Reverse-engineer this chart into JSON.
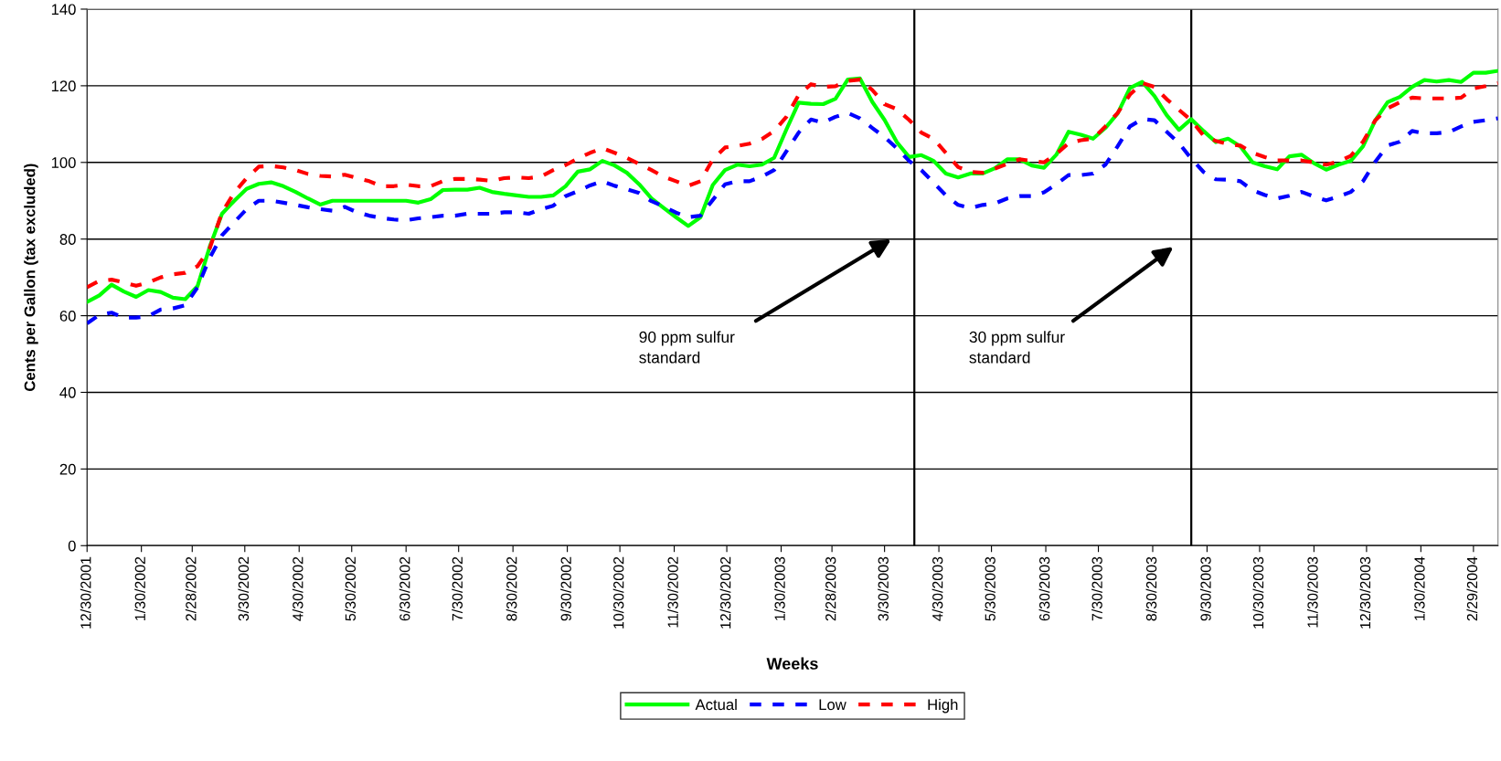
{
  "chart_data": {
    "type": "line",
    "xlabel": "Weeks",
    "ylabel": "Cents per Gallon (tax excluded)",
    "x": [
      "2001-12-30",
      "2002-01-06",
      "2002-01-13",
      "2002-01-20",
      "2002-01-27",
      "2002-02-03",
      "2002-02-10",
      "2002-02-17",
      "2002-02-24",
      "2002-03-03",
      "2002-03-10",
      "2002-03-17",
      "2002-03-24",
      "2002-03-31",
      "2002-04-07",
      "2002-04-14",
      "2002-04-21",
      "2002-04-28",
      "2002-05-05",
      "2002-05-12",
      "2002-05-19",
      "2002-05-26",
      "2002-06-02",
      "2002-06-09",
      "2002-06-16",
      "2002-06-23",
      "2002-06-30",
      "2002-07-07",
      "2002-07-14",
      "2002-07-21",
      "2002-07-28",
      "2002-08-04",
      "2002-08-11",
      "2002-08-18",
      "2002-08-25",
      "2002-09-01",
      "2002-09-08",
      "2002-09-15",
      "2002-09-22",
      "2002-09-29",
      "2002-10-06",
      "2002-10-13",
      "2002-10-20",
      "2002-10-27",
      "2002-11-03",
      "2002-11-10",
      "2002-11-17",
      "2002-11-24",
      "2002-12-01",
      "2002-12-08",
      "2002-12-15",
      "2002-12-22",
      "2002-12-29",
      "2003-01-05",
      "2003-01-12",
      "2003-01-19",
      "2003-01-26",
      "2003-02-02",
      "2003-02-09",
      "2003-02-16",
      "2003-02-23",
      "2003-03-02",
      "2003-03-09",
      "2003-03-16",
      "2003-03-23",
      "2003-03-30",
      "2003-04-06",
      "2003-04-13",
      "2003-04-20",
      "2003-04-27",
      "2003-05-04",
      "2003-05-11",
      "2003-05-18",
      "2003-05-25",
      "2003-06-01",
      "2003-06-08",
      "2003-06-15",
      "2003-06-22",
      "2003-06-29",
      "2003-07-06",
      "2003-07-13",
      "2003-07-20",
      "2003-07-27",
      "2003-08-03",
      "2003-08-10",
      "2003-08-17",
      "2003-08-24",
      "2003-08-31",
      "2003-09-07",
      "2003-09-14",
      "2003-09-21",
      "2003-09-28",
      "2003-10-05",
      "2003-10-12",
      "2003-10-19",
      "2003-10-26",
      "2003-11-02",
      "2003-11-09",
      "2003-11-16",
      "2003-11-23",
      "2003-11-30",
      "2003-12-07",
      "2003-12-14",
      "2003-12-21",
      "2003-12-28",
      "2004-01-04",
      "2004-01-11",
      "2004-01-18",
      "2004-01-25",
      "2004-02-01",
      "2004-02-08",
      "2004-02-15",
      "2004-02-22",
      "2004-02-29",
      "2004-03-07",
      "2004-03-14"
    ],
    "series": [
      {
        "name": "Actual",
        "color": "#00ff00",
        "line_style": "solid",
        "values": [
          63.6,
          65.3,
          68.1,
          66.3,
          64.9,
          66.7,
          66.2,
          64.7,
          64.3,
          67.7,
          78,
          86.6,
          90.0,
          93.1,
          94.4,
          94.8,
          93.8,
          92.3,
          90.6,
          89.0,
          90,
          90,
          90,
          90,
          90,
          90,
          90,
          89.5,
          90.4,
          92.8,
          92.9,
          92.9,
          93.4,
          92.3,
          91.8,
          91.4,
          91.0,
          91.0,
          91.4,
          93.8,
          97.6,
          98.2,
          100.4,
          99.2,
          97.3,
          94.3,
          90.6,
          88.1,
          85.7,
          83.4,
          85.7,
          94.1,
          98.0,
          99.4,
          99.0,
          99.4,
          101.2,
          108.6,
          115.6,
          115.3,
          115.2,
          116.6,
          121.6,
          121.9,
          115.8,
          111.1,
          105.3,
          101.4,
          101.9,
          100.4,
          97.1,
          96.1,
          97.1,
          97.1,
          98.5,
          100.8,
          100.8,
          99.2,
          98.6,
          102.0,
          108.0,
          107.2,
          106.2,
          109.0,
          112.8,
          119.4,
          121.0,
          117.3,
          112.3,
          108.5,
          111.3,
          108.2,
          105.3,
          106.2,
          104.2,
          100.0,
          99.0,
          98.2,
          101.6,
          102.0,
          99.8,
          98.1,
          99.4,
          100.4,
          104.2,
          111.0,
          115.7,
          117.1,
          119.7,
          121.5,
          121.1,
          121.5,
          121.0,
          123.4,
          123.4,
          123.9
        ]
      },
      {
        "name": "Low",
        "color": "#0000ff",
        "line_style": "dashed",
        "values": [
          58.0,
          60.2,
          60.8,
          59.5,
          59.5,
          59.9,
          61.6,
          61.9,
          62.7,
          67.4,
          75.1,
          81.0,
          84.4,
          87.8,
          90.0,
          90.0,
          89.5,
          88.9,
          88.3,
          87.8,
          87.4,
          88.4,
          87.0,
          86.1,
          85.5,
          85.1,
          84.9,
          85.4,
          85.7,
          86.1,
          86.1,
          86.6,
          86.6,
          86.6,
          87.0,
          87.0,
          86.6,
          87.8,
          88.7,
          91.2,
          92.5,
          94.0,
          95.1,
          93.9,
          93.0,
          92.0,
          89.9,
          88.5,
          86.9,
          85.7,
          86.1,
          90.2,
          94.3,
          95.1,
          95.1,
          96.3,
          98.0,
          102.9,
          107.8,
          111.2,
          110.4,
          111.9,
          112.9,
          111.5,
          109.0,
          106.6,
          103.7,
          100.4,
          98.0,
          94.7,
          91.4,
          88.9,
          88.1,
          88.9,
          89.3,
          90.6,
          91.2,
          91.2,
          92.2,
          94.3,
          96.7,
          96.7,
          97.1,
          99.4,
          104.2,
          109.4,
          111.3,
          111.0,
          108.0,
          105.0,
          101.0,
          97.5,
          95.6,
          95.5,
          95.1,
          92.7,
          91.5,
          90.6,
          91.3,
          92.3,
          91.1,
          90.1,
          91.1,
          92.3,
          95.1,
          100.2,
          104.4,
          105.4,
          108.2,
          107.6,
          107.6,
          107.9,
          109.4,
          110.6,
          111.0,
          111.5
        ]
      },
      {
        "name": "High",
        "color": "#ff0000",
        "line_style": "dashed",
        "values": [
          67.4,
          69.1,
          69.4,
          68.7,
          67.8,
          68.7,
          70.0,
          70.8,
          71.2,
          72.9,
          77.6,
          87.0,
          92.1,
          95.9,
          98.9,
          99.1,
          98.7,
          98.0,
          97.0,
          96.5,
          96.3,
          96.8,
          95.9,
          95.1,
          93.8,
          93.8,
          94.2,
          93.8,
          93.8,
          95.1,
          95.7,
          95.7,
          95.5,
          95.2,
          95.9,
          96.1,
          95.9,
          96.3,
          98.0,
          99.3,
          101.0,
          102.5,
          103.7,
          102.5,
          101.2,
          99.6,
          98.0,
          96.3,
          95.1,
          93.9,
          95.1,
          100.8,
          103.9,
          104.3,
          104.9,
          106.1,
          108.2,
          111.9,
          117.6,
          120.4,
          119.7,
          119.9,
          121.3,
          121.6,
          118.9,
          115.2,
          113.9,
          111.1,
          107.8,
          106.1,
          102.5,
          98.8,
          97.5,
          97.3,
          98.4,
          99.6,
          100.8,
          100.4,
          100.0,
          102.2,
          105.0,
          105.8,
          106.2,
          109.4,
          112.9,
          117.7,
          120.7,
          119.7,
          116.5,
          113.7,
          111.0,
          107.0,
          105.6,
          104.8,
          104.4,
          102.5,
          101.4,
          100.5,
          100.5,
          100.5,
          100.0,
          99.4,
          100.2,
          101.7,
          105.4,
          111.0,
          114.1,
          115.7,
          116.9,
          116.7,
          116.7,
          116.7,
          116.9,
          119.3,
          119.9,
          120.7
        ]
      }
    ],
    "xlim": [
      "2001-12-30",
      "2004-03-14"
    ],
    "xticks": [
      {
        "value": "2001-12-30",
        "label": "12/30/2001"
      },
      {
        "value": "2002-01-30",
        "label": "1/30/2002"
      },
      {
        "value": "2002-02-28",
        "label": "2/28/2002"
      },
      {
        "value": "2002-03-30",
        "label": "3/30/2002"
      },
      {
        "value": "2002-04-30",
        "label": "4/30/2002"
      },
      {
        "value": "2002-05-30",
        "label": "5/30/2002"
      },
      {
        "value": "2002-06-30",
        "label": "6/30/2002"
      },
      {
        "value": "2002-07-30",
        "label": "7/30/2002"
      },
      {
        "value": "2002-08-30",
        "label": "8/30/2002"
      },
      {
        "value": "2002-09-30",
        "label": "9/30/2002"
      },
      {
        "value": "2002-10-30",
        "label": "10/30/2002"
      },
      {
        "value": "2002-11-30",
        "label": "11/30/2002"
      },
      {
        "value": "2002-12-30",
        "label": "12/30/2002"
      },
      {
        "value": "2003-01-30",
        "label": "1/30/2003"
      },
      {
        "value": "2003-02-28",
        "label": "2/28/2003"
      },
      {
        "value": "2003-03-30",
        "label": "3/30/2003"
      },
      {
        "value": "2003-04-30",
        "label": "4/30/2003"
      },
      {
        "value": "2003-05-30",
        "label": "5/30/2003"
      },
      {
        "value": "2003-06-30",
        "label": "6/30/2003"
      },
      {
        "value": "2003-07-30",
        "label": "7/30/2003"
      },
      {
        "value": "2003-08-30",
        "label": "8/30/2003"
      },
      {
        "value": "2003-09-30",
        "label": "9/30/2003"
      },
      {
        "value": "2003-10-30",
        "label": "10/30/2003"
      },
      {
        "value": "2003-11-30",
        "label": "11/30/2003"
      },
      {
        "value": "2003-12-30",
        "label": "12/30/2003"
      },
      {
        "value": "2004-01-30",
        "label": "1/30/2004"
      },
      {
        "value": "2004-02-29",
        "label": "2/29/2004"
      }
    ],
    "ylim": [
      0,
      140
    ],
    "yticks": [
      0,
      20,
      40,
      60,
      80,
      100,
      120,
      140
    ],
    "grid": "y",
    "legend": "bottom",
    "marker": "none",
    "ref_lines": [
      {
        "axis": "x",
        "value": "2003-04-16",
        "color": "#000000"
      },
      {
        "axis": "x",
        "value": "2003-09-21",
        "color": "#000000"
      }
    ],
    "annotations": [
      "90 ppm sulfur\nstandard",
      "30 ppm sulfur\nstandard"
    ]
  }
}
